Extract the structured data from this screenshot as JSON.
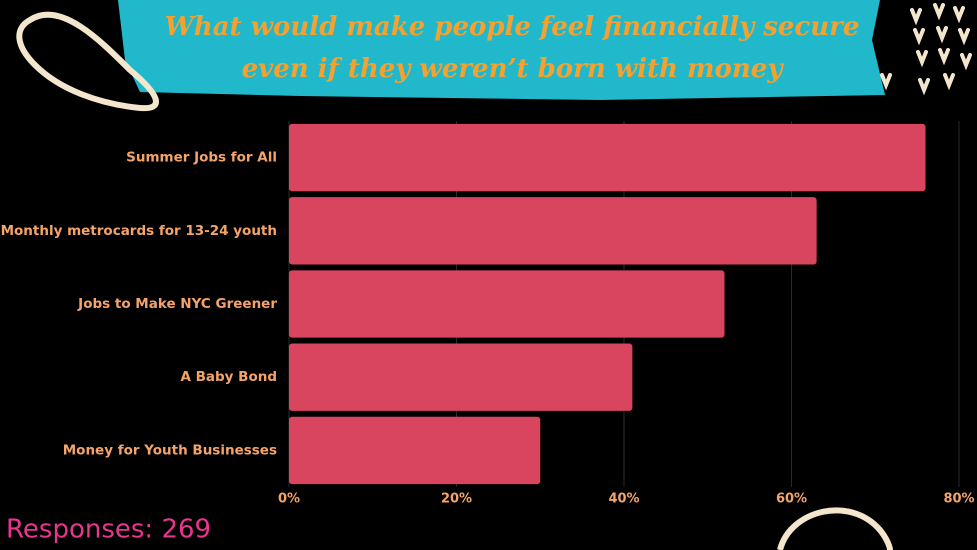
{
  "chart_data": {
    "type": "hbar",
    "title": [
      "What would make people feel financially secure",
      "even if they weren’t born with money"
    ],
    "categories": [
      "Summer Jobs for All",
      "Monthly metrocards for 13-24 youth",
      "Jobs to Make NYC Greener",
      "A Baby Bond",
      "Money for Youth Businesses"
    ],
    "values": [
      76,
      63,
      52,
      41,
      30
    ],
    "color": "#d9445f",
    "xlim": [
      0,
      80
    ],
    "xticks": [
      {
        "value": 0,
        "label": "0%"
      },
      {
        "value": 20,
        "label": "20%"
      },
      {
        "value": 40,
        "label": "40%"
      },
      {
        "value": 60,
        "label": "60%"
      },
      {
        "value": 80,
        "label": "80%"
      }
    ],
    "grid": true,
    "footnote": "Responses: 269"
  }
}
